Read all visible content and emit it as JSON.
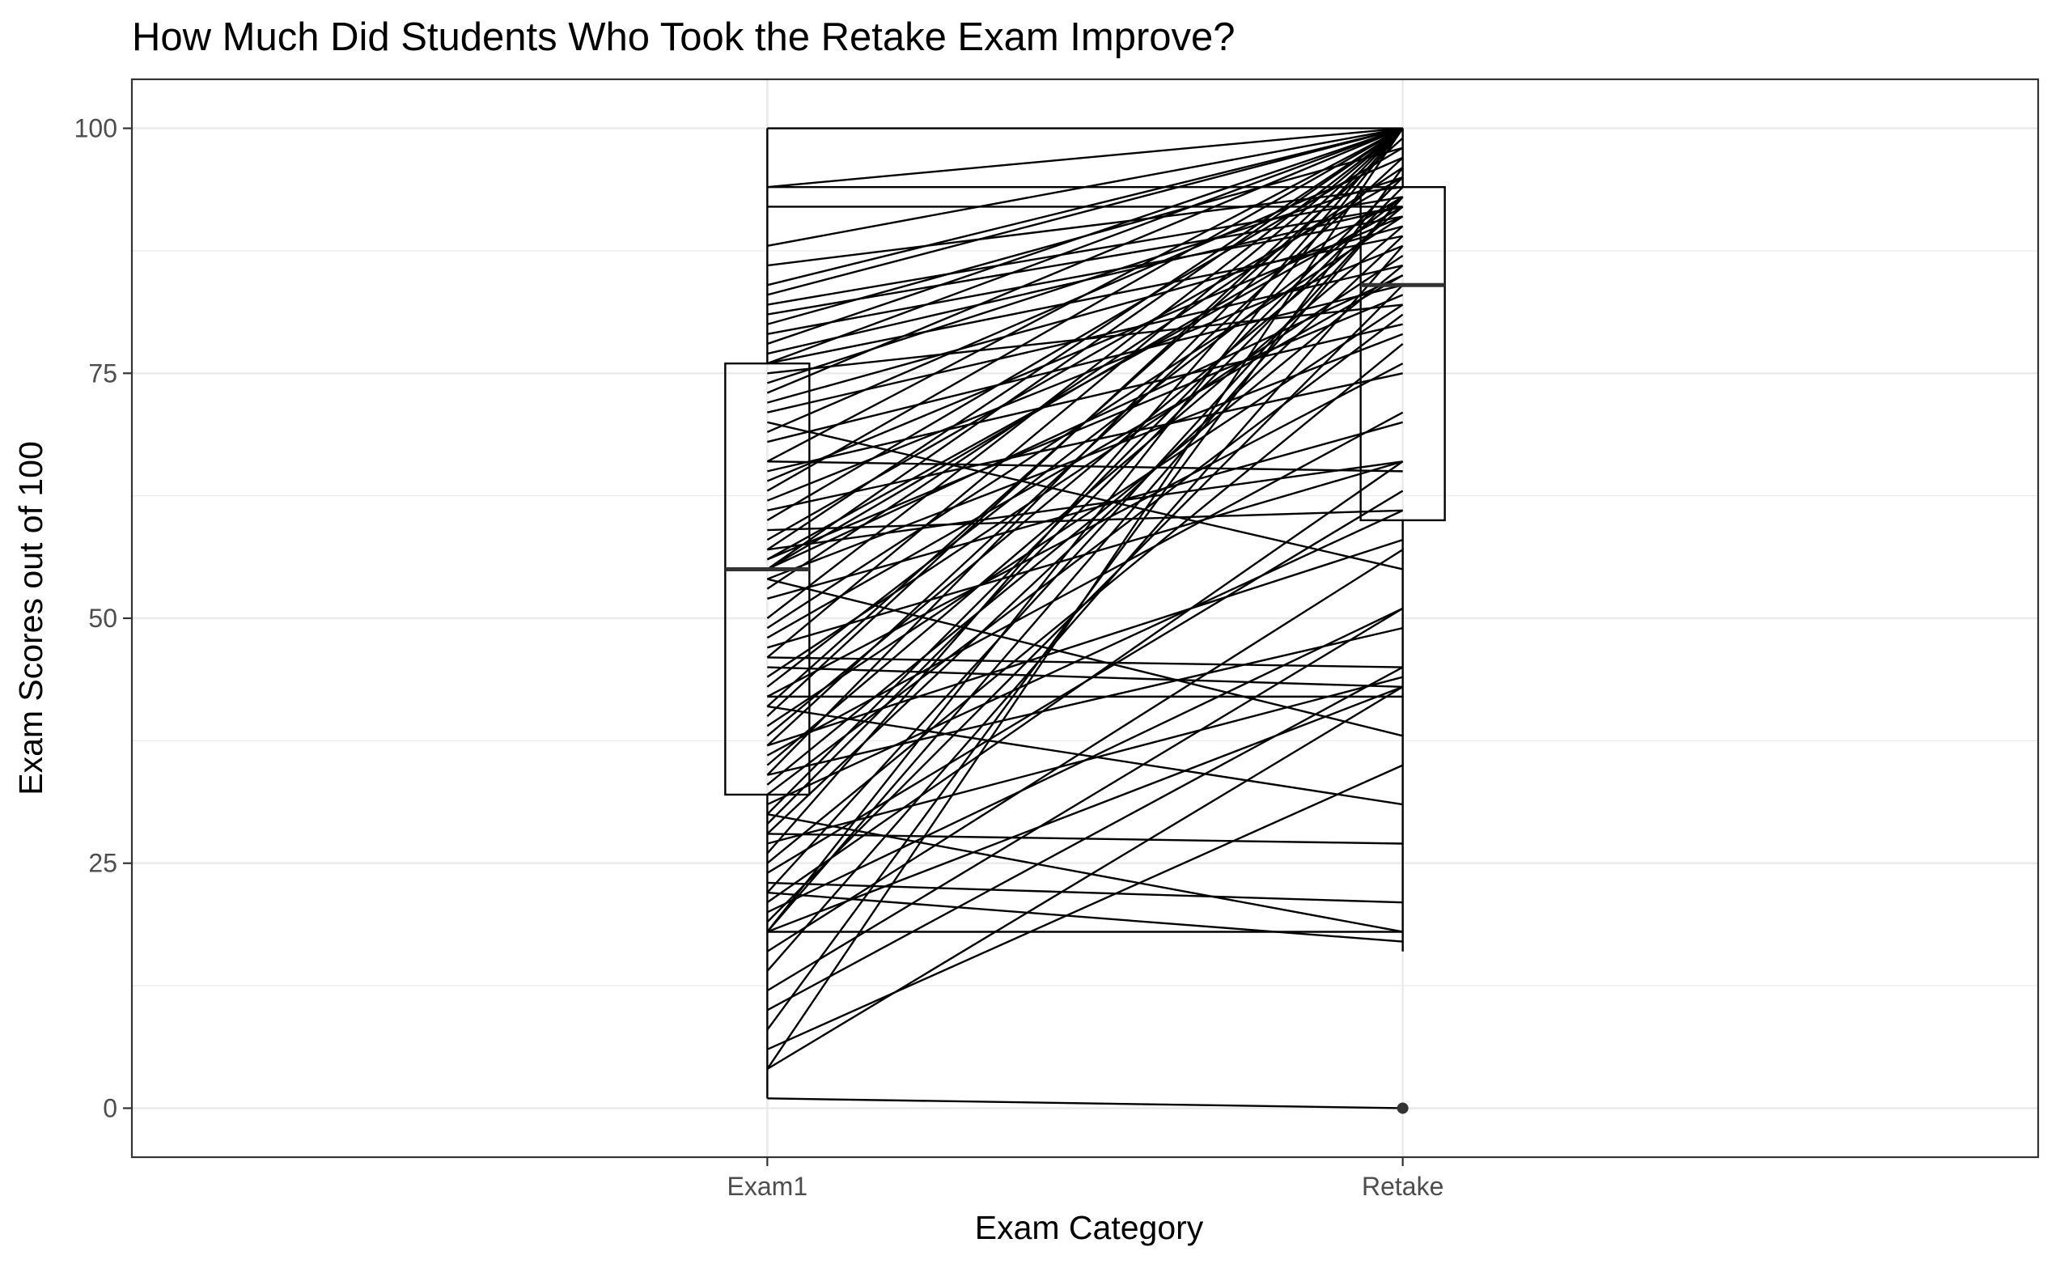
{
  "chart_data": {
    "type": "line",
    "title": "How Much Did Students Who Took the Retake Exam Improve?",
    "xlabel": "Exam Category",
    "ylabel": "Exam Scores out of 100",
    "categories": [
      "Exam1",
      "Retake"
    ],
    "ylim": [
      -5,
      105
    ],
    "yticks": [
      0,
      25,
      50,
      75,
      100
    ],
    "grid": true,
    "theme": "bw",
    "line_color": "#000000",
    "boxplots": [
      {
        "category": "Exam1",
        "min": 1,
        "q1": 32,
        "median": 55,
        "q3": 76,
        "max": 100,
        "outliers": []
      },
      {
        "category": "Retake",
        "min": 16,
        "q1": 60,
        "median": 84,
        "q3": 94,
        "max": 100,
        "outliers": [
          0
        ]
      }
    ],
    "pairs": [
      [
        100,
        100
      ],
      [
        94,
        94
      ],
      [
        94,
        100
      ],
      [
        92,
        92
      ],
      [
        88,
        100
      ],
      [
        86,
        94
      ],
      [
        84,
        100
      ],
      [
        83,
        100
      ],
      [
        82,
        93
      ],
      [
        81,
        92
      ],
      [
        80,
        98
      ],
      [
        79,
        91
      ],
      [
        78,
        100
      ],
      [
        77,
        92
      ],
      [
        76,
        89
      ],
      [
        76,
        100
      ],
      [
        75,
        82
      ],
      [
        74,
        95
      ],
      [
        73,
        100
      ],
      [
        72,
        90
      ],
      [
        71,
        86
      ],
      [
        70,
        55
      ],
      [
        69,
        97
      ],
      [
        68,
        84
      ],
      [
        66,
        65
      ],
      [
        66,
        100
      ],
      [
        65,
        80
      ],
      [
        64,
        91
      ],
      [
        63,
        100
      ],
      [
        62,
        88
      ],
      [
        61,
        75
      ],
      [
        60,
        98
      ],
      [
        59,
        61
      ],
      [
        58,
        95
      ],
      [
        57,
        66
      ],
      [
        57,
        100
      ],
      [
        56,
        83
      ],
      [
        56,
        92
      ],
      [
        55,
        100
      ],
      [
        55,
        85
      ],
      [
        55,
        93
      ],
      [
        54,
        79
      ],
      [
        54,
        38
      ],
      [
        53,
        96
      ],
      [
        52,
        70
      ],
      [
        50,
        100
      ],
      [
        49,
        91
      ],
      [
        48,
        85
      ],
      [
        47,
        66
      ],
      [
        46,
        45
      ],
      [
        46,
        100
      ],
      [
        45,
        43
      ],
      [
        44,
        87
      ],
      [
        43,
        93
      ],
      [
        42,
        42
      ],
      [
        42,
        76
      ],
      [
        41,
        31
      ],
      [
        41,
        99
      ],
      [
        40,
        100
      ],
      [
        39,
        82
      ],
      [
        38,
        92
      ],
      [
        37,
        58
      ],
      [
        37,
        97
      ],
      [
        36,
        71
      ],
      [
        35,
        90
      ],
      [
        34,
        49
      ],
      [
        34,
        100
      ],
      [
        33,
        86
      ],
      [
        32,
        81
      ],
      [
        31,
        61
      ],
      [
        30,
        18
      ],
      [
        30,
        95
      ],
      [
        29,
        94
      ],
      [
        28,
        27
      ],
      [
        28,
        89
      ],
      [
        27,
        44
      ],
      [
        26,
        100
      ],
      [
        25,
        78
      ],
      [
        24,
        63
      ],
      [
        23,
        21
      ],
      [
        22,
        17
      ],
      [
        22,
        93
      ],
      [
        21,
        66
      ],
      [
        20,
        51
      ],
      [
        19,
        84
      ],
      [
        18,
        18
      ],
      [
        18,
        100
      ],
      [
        18,
        43
      ],
      [
        18,
        93
      ],
      [
        16,
        57
      ],
      [
        14,
        88
      ],
      [
        12,
        51
      ],
      [
        10,
        45
      ],
      [
        8,
        96
      ],
      [
        6,
        35
      ],
      [
        4,
        100
      ],
      [
        4,
        43
      ],
      [
        1,
        0
      ]
    ]
  }
}
